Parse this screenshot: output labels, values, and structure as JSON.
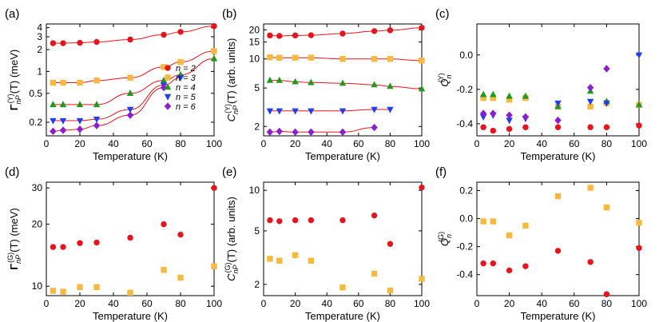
{
  "colors": {
    "n2": "#e8141c",
    "n3": "#f9b840",
    "n4": "#1e9a1e",
    "n5": "#1f3ff2",
    "n6": "#8a1ed0",
    "fit": "#e8141c"
  },
  "legend": {
    "entries": [
      "n = 2",
      "n = 3",
      "n = 4",
      "n = 5",
      "n = 6"
    ]
  },
  "chart_data": [
    {
      "panel": "(a)",
      "type": "scatter",
      "xlabel": "Temperature (K)",
      "ylabel": "Γ_nP^(Y)(T) (meV)",
      "ylog": true,
      "ylim": [
        0.13,
        4.5
      ],
      "xlim": [
        0,
        100
      ],
      "xticks": [
        0,
        20,
        40,
        60,
        80,
        100
      ],
      "yticks": [
        0.2,
        0.5,
        1,
        2,
        3,
        4
      ],
      "ytick_labels": [
        "0.2",
        "0.5",
        "1",
        "2",
        "3",
        "4"
      ],
      "series": [
        {
          "name": "n = 2",
          "color_key": "n2",
          "x": [
            4,
            10,
            20,
            30,
            50,
            70,
            80,
            100
          ],
          "y": [
            2.45,
            2.45,
            2.48,
            2.55,
            2.75,
            3.2,
            3.5,
            4.2
          ]
        },
        {
          "name": "n = 3",
          "color_key": "n3",
          "x": [
            4,
            10,
            20,
            30,
            50,
            70,
            80,
            100
          ],
          "y": [
            0.7,
            0.7,
            0.7,
            0.75,
            0.82,
            1.15,
            1.35,
            1.9
          ]
        },
        {
          "name": "n = 4",
          "color_key": "n4",
          "x": [
            4,
            10,
            20,
            30,
            50,
            70,
            80,
            100
          ],
          "y": [
            0.35,
            0.35,
            0.35,
            0.35,
            0.5,
            0.75,
            0.9,
            1.5
          ]
        },
        {
          "name": "n = 5",
          "color_key": "n5",
          "x": [
            4,
            10,
            20,
            30,
            50,
            70,
            80
          ],
          "y": [
            0.21,
            0.21,
            0.21,
            0.22,
            0.3,
            0.65,
            0.82
          ]
        },
        {
          "name": "n = 6",
          "color_key": "n6",
          "x": [
            4,
            10,
            20,
            30,
            50,
            70
          ],
          "y": [
            0.15,
            0.155,
            0.16,
            0.18,
            0.25,
            0.6
          ]
        }
      ]
    },
    {
      "panel": "(b)",
      "type": "scatter",
      "xlabel": "Temperature (K)",
      "ylabel": "C_nP^(Y)(T) (arb. units)",
      "ylog": true,
      "ylim": [
        1.6,
        23
      ],
      "xlim": [
        0,
        100
      ],
      "xticks": [
        0,
        20,
        40,
        60,
        80,
        100
      ],
      "yticks": [
        2,
        5,
        10,
        15,
        20
      ],
      "ytick_labels": [
        "2",
        "5",
        "10",
        "15",
        "20"
      ],
      "series": [
        {
          "name": "n = 2",
          "color_key": "n2",
          "x": [
            4,
            10,
            20,
            30,
            50,
            70,
            80,
            100
          ],
          "y": [
            17.5,
            17.3,
            17.5,
            17.6,
            18.3,
            19.4,
            19.8,
            21.0
          ]
        },
        {
          "name": "n = 3",
          "color_key": "n3",
          "x": [
            4,
            10,
            20,
            30,
            50,
            70,
            80,
            100
          ],
          "y": [
            10.4,
            10.3,
            10.3,
            10.3,
            10.0,
            10.0,
            10.0,
            9.6
          ]
        },
        {
          "name": "n = 4",
          "color_key": "n4",
          "x": [
            4,
            10,
            20,
            30,
            50,
            70,
            80,
            100
          ],
          "y": [
            6.0,
            6.0,
            5.8,
            5.7,
            5.6,
            5.4,
            5.2,
            4.9
          ]
        },
        {
          "name": "n = 5",
          "color_key": "n5",
          "x": [
            4,
            10,
            20,
            30,
            50,
            70,
            80
          ],
          "y": [
            2.9,
            2.9,
            2.9,
            2.9,
            2.9,
            3.0,
            3.0
          ]
        },
        {
          "name": "n = 6",
          "color_key": "n6",
          "x": [
            4,
            10,
            20,
            30,
            50,
            70
          ],
          "y": [
            1.75,
            1.78,
            1.75,
            1.75,
            1.75,
            1.95
          ]
        }
      ]
    },
    {
      "panel": "(c)",
      "type": "scatter",
      "xlabel": "Temperature (K)",
      "ylabel": "Q_n^(Y)",
      "ylog": false,
      "ylim": [
        -0.47,
        0.18
      ],
      "xlim": [
        0,
        100
      ],
      "xticks": [
        0,
        20,
        40,
        60,
        80,
        100
      ],
      "yticks": [
        -0.4,
        -0.2,
        0.0
      ],
      "ytick_labels": [
        "-0.4",
        "-0.2",
        "0.0"
      ],
      "series": [
        {
          "name": "n = 2",
          "color_key": "n2",
          "x": [
            4,
            10,
            20,
            30,
            50,
            70,
            80,
            100
          ],
          "y": [
            -0.42,
            -0.44,
            -0.43,
            -0.42,
            -0.42,
            -0.42,
            -0.42,
            -0.41
          ]
        },
        {
          "name": "n = 3",
          "color_key": "n3",
          "x": [
            4,
            10,
            20,
            30,
            50,
            70,
            80,
            100
          ],
          "y": [
            -0.25,
            -0.25,
            -0.26,
            -0.25,
            -0.3,
            -0.3,
            -0.28,
            -0.29
          ]
        },
        {
          "name": "n = 4",
          "color_key": "n4",
          "x": [
            4,
            10,
            20,
            30,
            50,
            70,
            80,
            100
          ],
          "y": [
            -0.23,
            -0.23,
            -0.24,
            -0.24,
            -0.3,
            -0.21,
            -0.27,
            -0.29
          ]
        },
        {
          "name": "n = 5",
          "color_key": "n5",
          "x": [
            4,
            10,
            20,
            30,
            50,
            70,
            80,
            100
          ],
          "y": [
            -0.36,
            -0.35,
            -0.38,
            -0.37,
            -0.28,
            -0.27,
            -0.28,
            0.0
          ]
        },
        {
          "name": "n = 6",
          "color_key": "n6",
          "x": [
            4,
            10,
            20,
            30,
            50,
            70,
            80
          ],
          "y": [
            -0.34,
            -0.34,
            -0.35,
            -0.36,
            -0.38,
            -0.19,
            -0.08
          ]
        }
      ]
    },
    {
      "panel": "(d)",
      "type": "scatter",
      "xlabel": "Temperature (K)",
      "ylabel": "Γ_nP^(G)(T) (meV)",
      "ylog": true,
      "ylim": [
        9,
        32
      ],
      "xlim": [
        0,
        100
      ],
      "xticks": [
        0,
        20,
        40,
        60,
        80,
        100
      ],
      "yticks": [
        10,
        20,
        30
      ],
      "ytick_labels": [
        "10",
        "20",
        "30"
      ],
      "series": [
        {
          "name": "n = 2",
          "color_key": "n2",
          "x": [
            4,
            10,
            20,
            30,
            50,
            70,
            80,
            100
          ],
          "y": [
            15.5,
            15.5,
            16.2,
            16.3,
            17.2,
            20.0,
            17.8,
            30.0
          ]
        },
        {
          "name": "n = 3",
          "color_key": "n3",
          "x": [
            4,
            10,
            20,
            30,
            50,
            70,
            80,
            100
          ],
          "y": [
            9.5,
            9.4,
            9.9,
            9.9,
            9.3,
            12.0,
            11.0,
            12.5
          ]
        }
      ]
    },
    {
      "panel": "(e)",
      "type": "scatter",
      "xlabel": "Temperature (K)",
      "ylabel": "C_nP^(G)(T) (arb. units)",
      "ylog": true,
      "ylim": [
        1.65,
        11.5
      ],
      "xlim": [
        0,
        100
      ],
      "xticks": [
        0,
        20,
        40,
        60,
        80,
        100
      ],
      "yticks": [
        2,
        5,
        10
      ],
      "ytick_labels": [
        "2",
        "5",
        "10"
      ],
      "series": [
        {
          "name": "n = 2",
          "color_key": "n2",
          "x": [
            4,
            10,
            20,
            30,
            50,
            70,
            80,
            100
          ],
          "y": [
            6.0,
            5.9,
            6.0,
            6.0,
            6.0,
            6.5,
            4.0,
            10.5
          ]
        },
        {
          "name": "n = 3",
          "color_key": "n3",
          "x": [
            4,
            10,
            20,
            30,
            50,
            70,
            80,
            100
          ],
          "y": [
            3.1,
            3.0,
            3.3,
            3.0,
            1.9,
            2.4,
            1.8,
            2.2
          ]
        }
      ]
    },
    {
      "panel": "(f)",
      "type": "scatter",
      "xlabel": "Temperature (K)",
      "ylabel": "Q_n^(G)",
      "ylog": false,
      "ylim": [
        -0.55,
        0.26
      ],
      "xlim": [
        0,
        100
      ],
      "xticks": [
        0,
        20,
        40,
        60,
        80,
        100
      ],
      "yticks": [
        -0.4,
        -0.2,
        0.0,
        0.2
      ],
      "ytick_labels": [
        "-0.4",
        "-0.2",
        "0.0",
        "0.2"
      ],
      "series": [
        {
          "name": "n = 2",
          "color_key": "n2",
          "x": [
            4,
            10,
            20,
            30,
            50,
            70,
            80,
            100
          ],
          "y": [
            -0.32,
            -0.32,
            -0.37,
            -0.34,
            -0.23,
            -0.31,
            -0.54,
            -0.21
          ]
        },
        {
          "name": "n = 3",
          "color_key": "n3",
          "x": [
            4,
            10,
            20,
            30,
            50,
            70,
            80,
            100
          ],
          "y": [
            -0.02,
            -0.02,
            -0.12,
            -0.05,
            0.16,
            0.22,
            0.08,
            -0.03
          ]
        }
      ]
    }
  ]
}
